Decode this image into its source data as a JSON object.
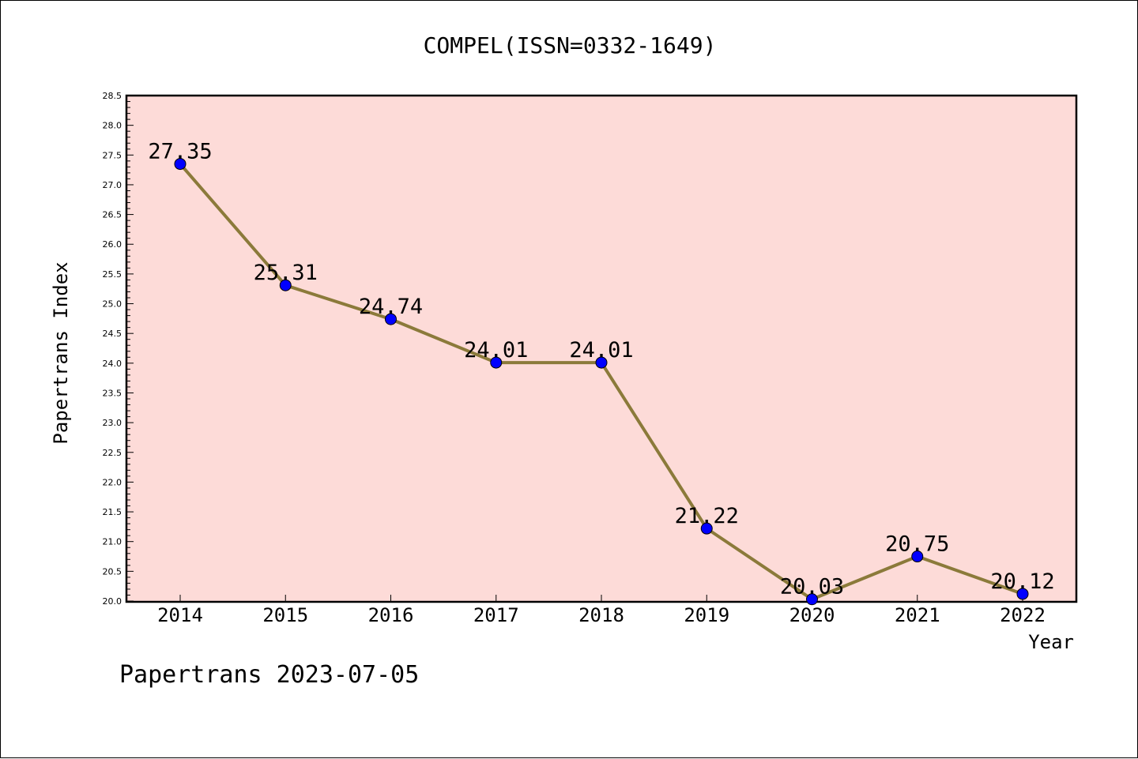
{
  "chart_data": {
    "type": "line",
    "title": "COMPEL(ISSN=0332-1649)",
    "xlabel": "Year",
    "ylabel": "Papertrans Index",
    "categories": [
      "2014",
      "2015",
      "2016",
      "2017",
      "2018",
      "2019",
      "2020",
      "2021",
      "2022"
    ],
    "series": [
      {
        "values": [
          27.35,
          25.31,
          24.74,
          24.01,
          24.01,
          21.22,
          20.03,
          20.75,
          20.12
        ],
        "labels": [
          "27.35",
          "25.31",
          "24.74",
          "24.01",
          "24.01",
          "21.22",
          "20.03",
          "20.75",
          "20.12"
        ],
        "line_color": "#8b7a3a",
        "marker_color": "#0000ff"
      }
    ],
    "ylim": [
      20.0,
      28.5
    ],
    "y_major_step": 0.5,
    "y_minor_step": 0.1,
    "yticks": [
      "20.0",
      "20.5",
      "21.0",
      "21.5",
      "22.0",
      "22.5",
      "23.0",
      "23.5",
      "24.0",
      "24.5",
      "25.0",
      "25.5",
      "26.0",
      "26.5",
      "27.0",
      "27.5",
      "28.0",
      "28.5"
    ],
    "plot_background": "#fddbd8",
    "grid": false,
    "legend": "none"
  },
  "footer": "Papertrans 2023-07-05"
}
